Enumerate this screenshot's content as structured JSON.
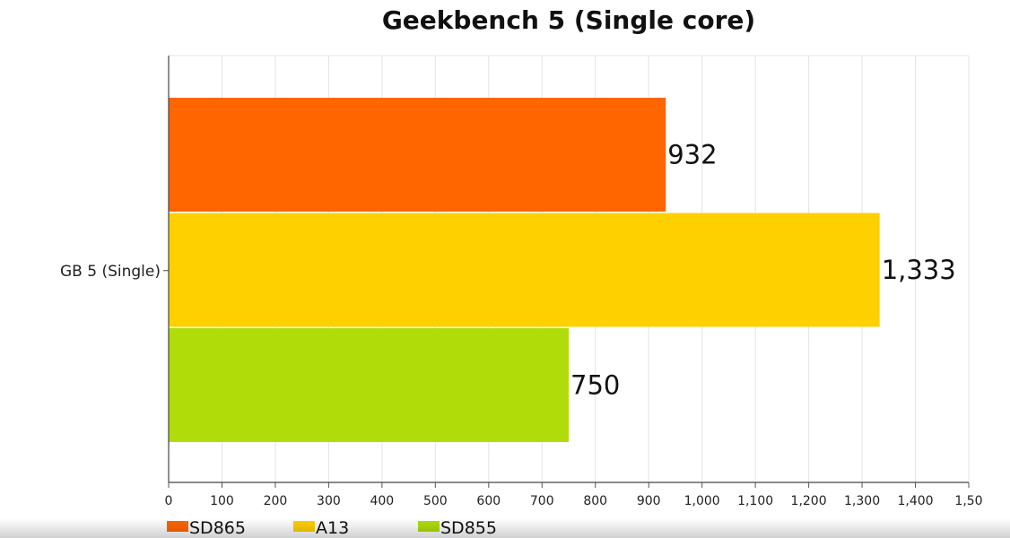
{
  "chart_data": {
    "type": "bar",
    "orientation": "horizontal",
    "title": "Geekbench 5 (Single core)",
    "categories": [
      "GB 5 (Single)"
    ],
    "series": [
      {
        "name": "SD865",
        "values": [
          932
        ],
        "value_label": "932",
        "color": "#ff6600"
      },
      {
        "name": "A13",
        "values": [
          1333
        ],
        "value_label": "1,333",
        "color": "#ffd000"
      },
      {
        "name": "SD855",
        "values": [
          750
        ],
        "value_label": "750",
        "color": "#b0dd0a"
      }
    ],
    "x_ticks": [
      "0",
      "100",
      "200",
      "300",
      "400",
      "500",
      "600",
      "700",
      "800",
      "900",
      "1,000",
      "1,100",
      "1,200",
      "1,300",
      "1,400",
      "1,50"
    ],
    "xlim": [
      0,
      1500
    ],
    "grid": true,
    "legend_position": "bottom-left"
  }
}
